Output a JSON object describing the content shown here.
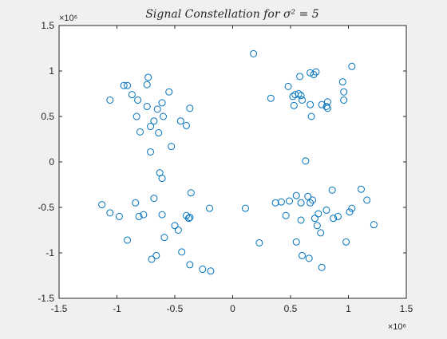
{
  "chart_data": {
    "type": "scatter",
    "title": "Signal Constellation for σ² = 5",
    "xlabel": "",
    "ylabel": "",
    "x_exponent_label": "×10⁶",
    "y_exponent_label": "×10⁶",
    "xlim": [
      -1.5,
      1.5
    ],
    "ylim": [
      -1.5,
      1.5
    ],
    "xticks": [
      -1.5,
      -1,
      -0.5,
      0,
      0.5,
      1,
      1.5
    ],
    "xtick_labels": [
      "-1.5",
      "-1",
      "-0.5",
      "0",
      "0.5",
      "1",
      "1.5"
    ],
    "yticks": [
      -1.5,
      -1,
      -0.5,
      0,
      0.5,
      1,
      1.5
    ],
    "ytick_labels": [
      "-1.5",
      "-1",
      "-0.5",
      "0",
      "0.5",
      "1",
      "1.5"
    ],
    "grid": false,
    "marker": "open-circle",
    "marker_color": "#0072bd",
    "points": [
      [
        -1.06,
        0.68
      ],
      [
        -0.94,
        0.84
      ],
      [
        -0.91,
        0.84
      ],
      [
        -0.73,
        0.93
      ],
      [
        -0.74,
        0.85
      ],
      [
        -0.87,
        0.74
      ],
      [
        -0.82,
        0.68
      ],
      [
        -0.74,
        0.61
      ],
      [
        -0.83,
        0.5
      ],
      [
        -0.55,
        0.77
      ],
      [
        -0.61,
        0.65
      ],
      [
        -0.65,
        0.58
      ],
      [
        -0.6,
        0.5
      ],
      [
        -0.68,
        0.45
      ],
      [
        -0.71,
        0.39
      ],
      [
        -0.8,
        0.33
      ],
      [
        -0.64,
        0.32
      ],
      [
        -0.45,
        0.45
      ],
      [
        -0.4,
        0.4
      ],
      [
        -0.37,
        0.59
      ],
      [
        -0.53,
        0.17
      ],
      [
        -0.71,
        0.11
      ],
      [
        -0.63,
        -0.12
      ],
      [
        -0.61,
        -0.18
      ],
      [
        -0.68,
        -0.4
      ],
      [
        -0.36,
        -0.34
      ],
      [
        -1.13,
        -0.47
      ],
      [
        -1.06,
        -0.56
      ],
      [
        -0.98,
        -0.6
      ],
      [
        -0.84,
        -0.45
      ],
      [
        -0.81,
        -0.6
      ],
      [
        -0.77,
        -0.58
      ],
      [
        -0.61,
        -0.58
      ],
      [
        -0.4,
        -0.59
      ],
      [
        -0.38,
        -0.62
      ],
      [
        -0.37,
        -0.61
      ],
      [
        -0.2,
        -0.51
      ],
      [
        -0.5,
        -0.7
      ],
      [
        -0.47,
        -0.75
      ],
      [
        -0.59,
        -0.83
      ],
      [
        -0.91,
        -0.86
      ],
      [
        -0.66,
        -1.03
      ],
      [
        -0.7,
        -1.07
      ],
      [
        -0.44,
        -0.99
      ],
      [
        -0.37,
        -1.13
      ],
      [
        -0.26,
        -1.18
      ],
      [
        -0.19,
        -1.2
      ],
      [
        0.18,
        1.19
      ],
      [
        0.6,
        0.68
      ],
      [
        0.67,
        0.98
      ],
      [
        0.7,
        0.96
      ],
      [
        0.72,
        0.99
      ],
      [
        0.58,
        0.94
      ],
      [
        0.48,
        0.83
      ],
      [
        0.54,
        0.74
      ],
      [
        0.57,
        0.75
      ],
      [
        0.59,
        0.73
      ],
      [
        0.52,
        0.72
      ],
      [
        0.33,
        0.7
      ],
      [
        0.53,
        0.62
      ],
      [
        0.67,
        0.63
      ],
      [
        0.68,
        0.5
      ],
      [
        0.77,
        0.63
      ],
      [
        0.81,
        0.61
      ],
      [
        0.82,
        0.59
      ],
      [
        0.82,
        0.66
      ],
      [
        0.95,
        0.88
      ],
      [
        1.03,
        1.05
      ],
      [
        0.96,
        0.77
      ],
      [
        0.96,
        0.68
      ],
      [
        0.63,
        0.01
      ],
      [
        0.11,
        -0.51
      ],
      [
        0.23,
        -0.89
      ],
      [
        0.37,
        -0.45
      ],
      [
        0.42,
        -0.44
      ],
      [
        0.49,
        -0.43
      ],
      [
        0.46,
        -0.59
      ],
      [
        0.55,
        -0.37
      ],
      [
        0.59,
        -0.45
      ],
      [
        0.59,
        -0.64
      ],
      [
        0.65,
        -0.38
      ],
      [
        0.67,
        -0.45
      ],
      [
        0.69,
        -0.42
      ],
      [
        0.71,
        -0.62
      ],
      [
        0.73,
        -0.7
      ],
      [
        0.74,
        -0.57
      ],
      [
        0.76,
        -0.78
      ],
      [
        0.81,
        -0.53
      ],
      [
        0.86,
        -0.31
      ],
      [
        0.87,
        -0.62
      ],
      [
        0.91,
        -0.6
      ],
      [
        0.55,
        -0.88
      ],
      [
        0.6,
        -1.03
      ],
      [
        0.66,
        -1.06
      ],
      [
        0.77,
        -1.16
      ],
      [
        0.98,
        -0.88
      ],
      [
        1.01,
        -0.55
      ],
      [
        1.03,
        -0.51
      ],
      [
        1.11,
        -0.3
      ],
      [
        1.16,
        -0.42
      ],
      [
        1.22,
        -0.69
      ]
    ]
  }
}
